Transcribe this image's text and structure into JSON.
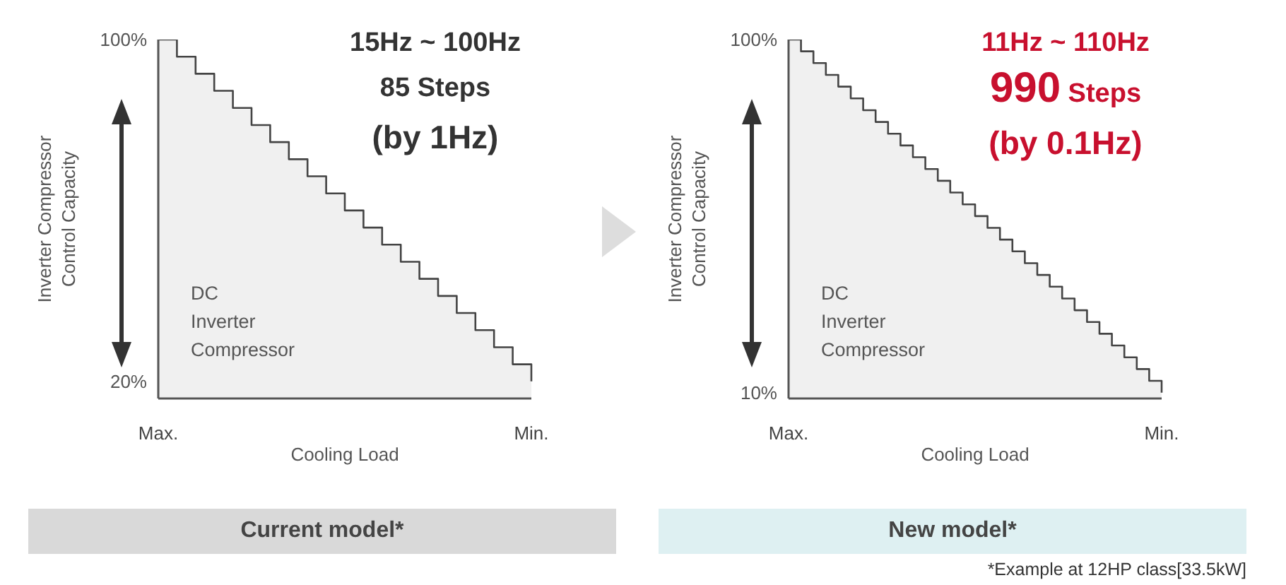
{
  "chart_data": [
    {
      "type": "step",
      "title": "Current model*",
      "xlabel": "Cooling Load",
      "ylabel": "Inverter Compressor Control Capacity",
      "annotations": [
        "15Hz ~ 100Hz",
        "85 Steps",
        "(by 1Hz)",
        "DC Inverter Compressor"
      ],
      "categories": [
        "Max.",
        null,
        null,
        null,
        null,
        null,
        null,
        null,
        null,
        null,
        null,
        null,
        null,
        null,
        null,
        null,
        null,
        null,
        null,
        null,
        "Min."
      ],
      "series": [
        {
          "color": "#444444",
          "values": [
            100,
            96,
            92,
            88,
            84,
            80,
            76,
            72,
            68,
            64,
            60,
            56,
            52,
            48,
            44,
            40,
            36,
            32,
            28,
            24,
            20
          ]
        }
      ],
      "ylim": [
        16,
        100
      ],
      "yticks": [
        {
          "value": 100,
          "label": "100%"
        },
        {
          "value": 20,
          "label": "20%"
        }
      ],
      "grid": false,
      "legend": false
    },
    {
      "type": "step",
      "title": "New model*",
      "xlabel": "Cooling Load",
      "ylabel": "Inverter Compressor Control Capacity",
      "annotations": [
        "11Hz ~ 110Hz",
        "990 Steps",
        "(by 0.1Hz)",
        "DC Inverter Compressor",
        "*Example at 12HP class[33.5kW]"
      ],
      "categories": [
        "Max.",
        null,
        null,
        null,
        null,
        null,
        null,
        null,
        null,
        null,
        null,
        null,
        null,
        null,
        null,
        null,
        null,
        null,
        null,
        null,
        null,
        null,
        null,
        null,
        null,
        null,
        null,
        null,
        null,
        null,
        "Min."
      ],
      "series": [
        {
          "color": "#444444",
          "values": [
            100,
            97,
            94,
            91,
            88,
            85,
            82,
            79,
            76,
            73,
            70,
            67,
            64,
            61,
            58,
            55,
            52,
            49,
            46,
            43,
            40,
            37,
            34,
            31,
            28,
            25,
            22,
            19,
            16,
            13,
            10
          ]
        }
      ],
      "ylim": [
        8.5,
        100
      ],
      "yticks": [
        {
          "value": 100,
          "label": "100%"
        },
        {
          "value": 10,
          "label": "10%"
        }
      ],
      "grid": false,
      "legend": false
    }
  ]
}
